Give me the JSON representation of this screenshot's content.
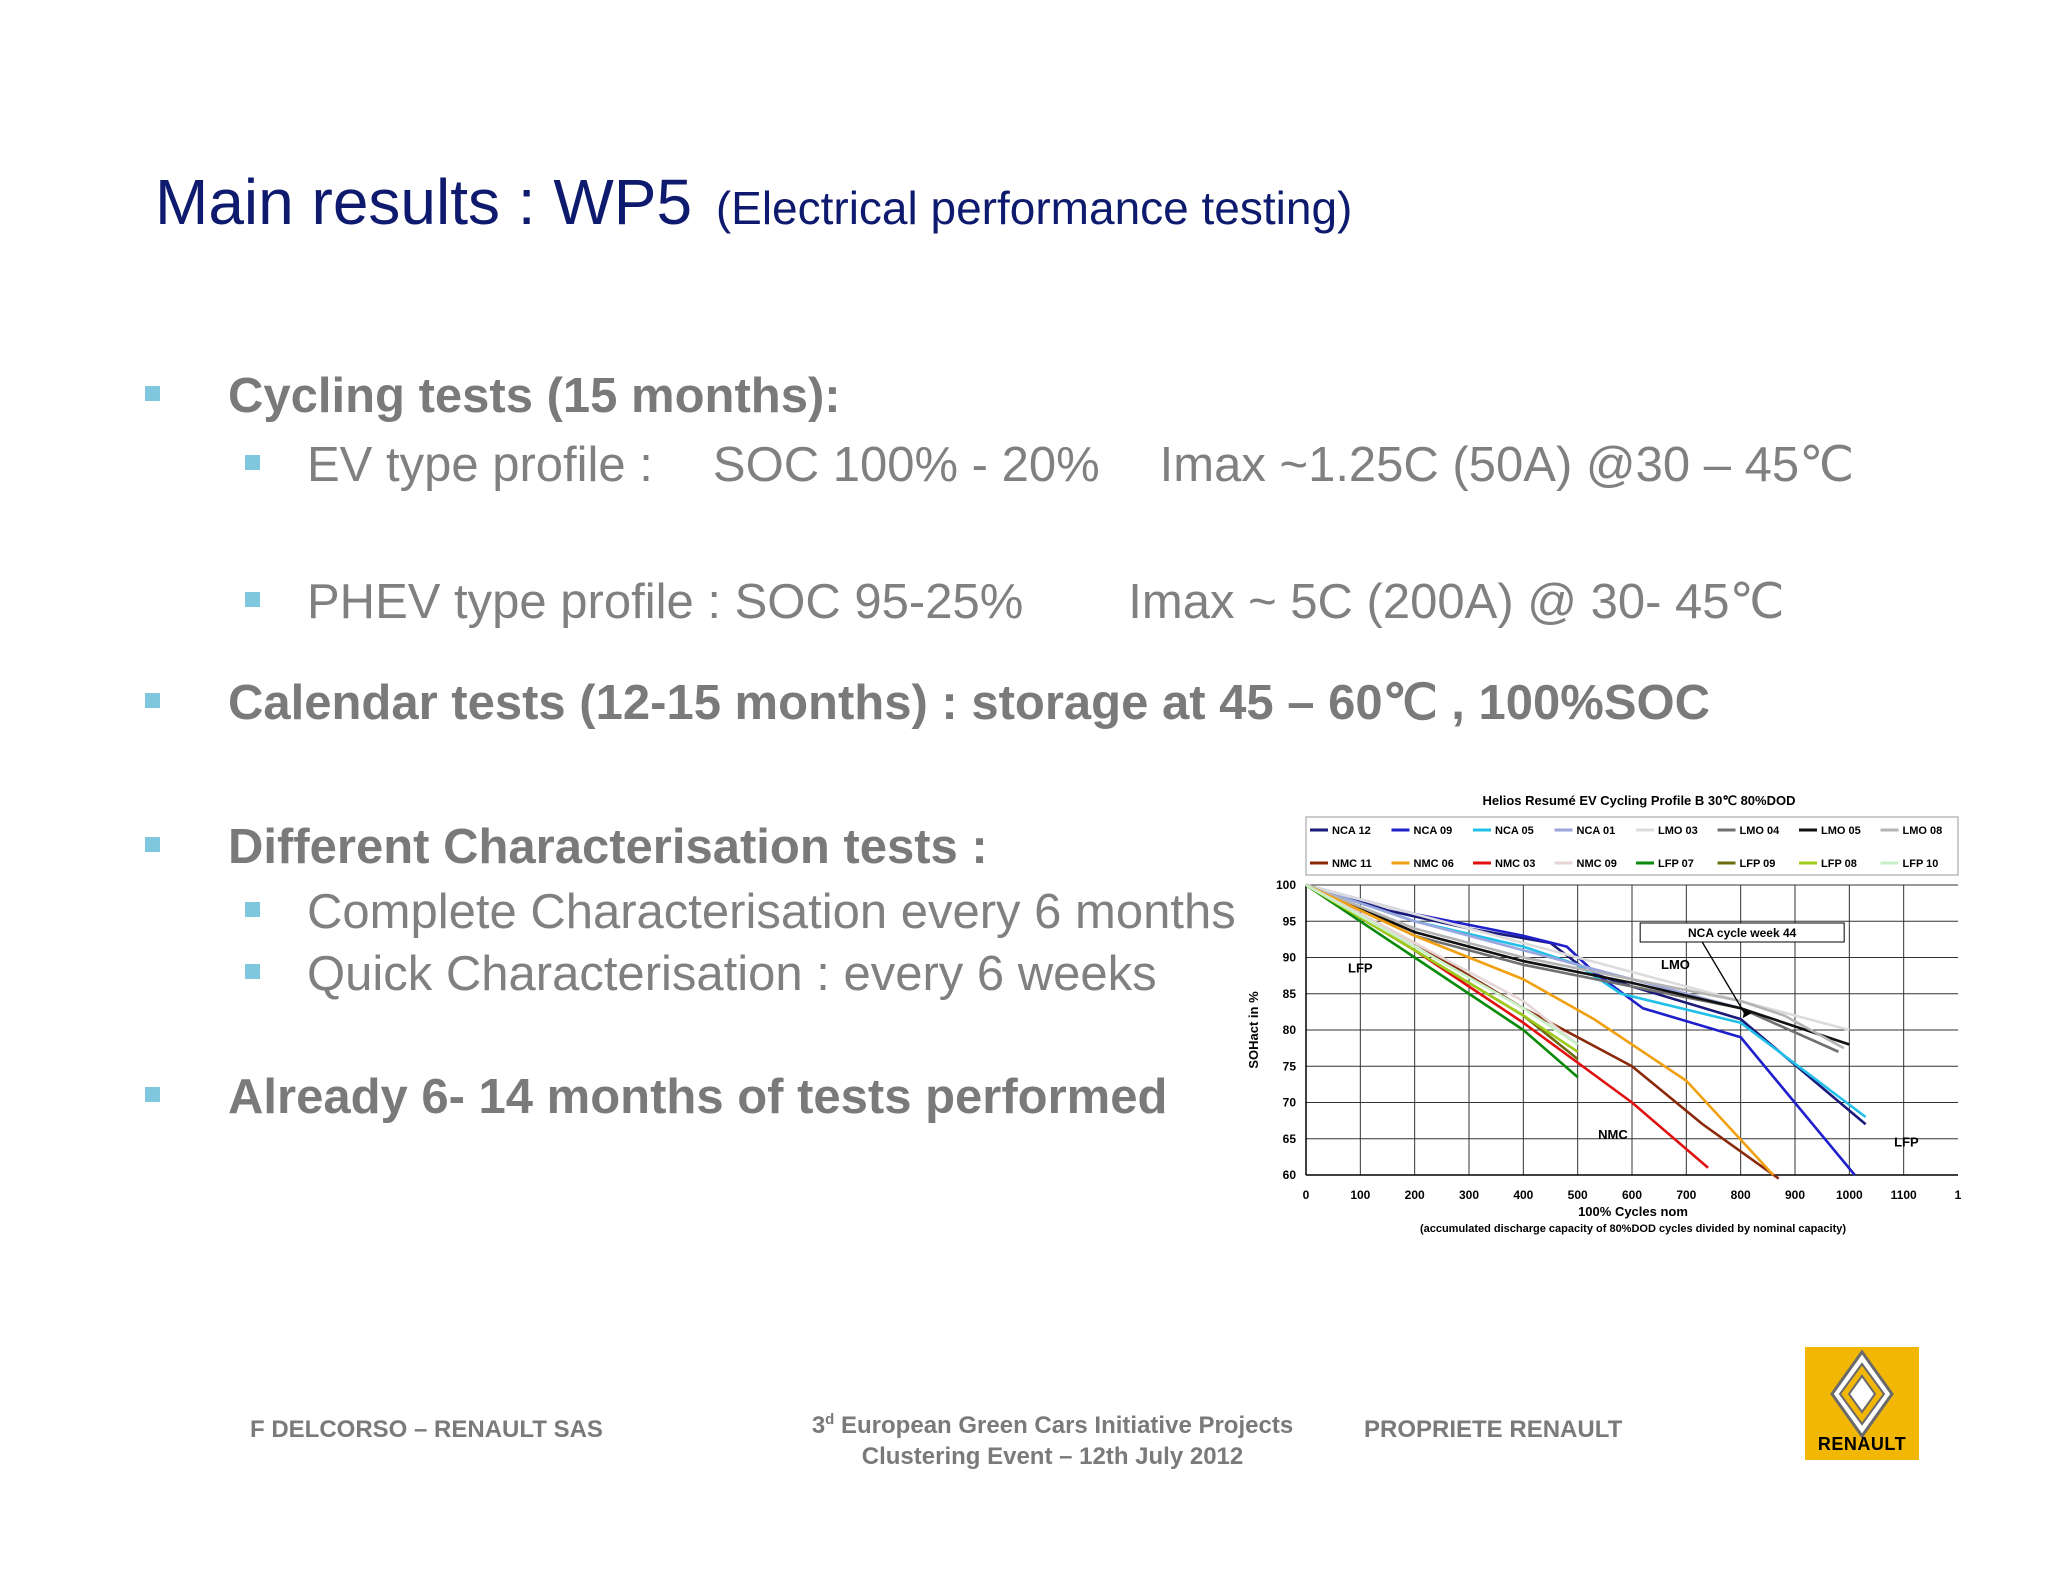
{
  "slide": {
    "title": "Main results : WP5",
    "title_sub": "(Electrical performance testing)",
    "bullets": {
      "cycling": "Cycling tests (15 months):",
      "ev_profile_label": "EV type profile :",
      "ev_soc": "SOC 100% - 20%",
      "ev_imax": "Imax ~1.25C (50A) @30 – 45℃",
      "phev_profile": "PHEV type profile : SOC 95-25%",
      "phev_imax": "Imax ~ 5C (200A) @ 30- 45℃",
      "calendar": "Calendar tests (12-15 months) : storage at 45 – 60℃ , 100%SOC",
      "characterisation": "Different Characterisation tests :",
      "complete_char": "Complete Characterisation every 6 months,",
      "quick_char": "Quick Characterisation : every 6 weeks",
      "already": "Already 6- 14 months of tests performed"
    },
    "footer": {
      "author": "F DELCORSO – RENAULT SAS",
      "event_prefix": "3",
      "event_sup": "d",
      "event_line1": " European Green Cars Initiative Projects",
      "event_line2": "Clustering Event – 12th July 2012",
      "propriete": "PROPRIETE RENAULT"
    },
    "logo": {
      "text": "RENAULT",
      "icon": "renault-diamond-icon",
      "color": "#f2b705"
    }
  },
  "chart_data": {
    "type": "line",
    "title": "Helios Resumé EV Cycling Profile B 30℃ 80%DOD",
    "xlabel": "100% Cycles nom",
    "xlabel_note": "(accumulated discharge capacity of 80%DOD cycles divided by nominal capacity)",
    "ylabel": "SOHact in %",
    "xlim": [
      0,
      1200
    ],
    "ylim": [
      60,
      100
    ],
    "xticks": [
      "0",
      "100",
      "200",
      "300",
      "400",
      "500",
      "600",
      "700",
      "800",
      "900",
      "1000",
      "1100",
      "1"
    ],
    "yticks": [
      "60",
      "65",
      "70",
      "75",
      "80",
      "85",
      "90",
      "95",
      "100"
    ],
    "grid": true,
    "legend_position": "top",
    "annotations": [
      {
        "text": "LFP",
        "x": 100,
        "y": 88.5
      },
      {
        "text": "LMO",
        "x": 680,
        "y": 89
      },
      {
        "text": "NMC",
        "x": 565,
        "y": 65.5
      },
      {
        "text": "LFP",
        "x": 1105,
        "y": 64.5
      },
      {
        "text": "NCA cycle week 44",
        "x": 950,
        "y": 92,
        "arrow_to": [
          800,
          81.5
        ]
      }
    ],
    "series": [
      {
        "name": "NCA 12",
        "color": "#1a1a7a",
        "x": [
          0,
          150,
          300,
          450,
          520,
          600,
          800,
          1030
        ],
        "y": [
          100,
          96.5,
          94,
          92,
          88,
          86,
          81.5,
          67
        ]
      },
      {
        "name": "NCA 09",
        "color": "#1f1fcc",
        "x": [
          0,
          200,
          400,
          480,
          530,
          620,
          800,
          1010
        ],
        "y": [
          100,
          96,
          93,
          91.5,
          88,
          83,
          79,
          60
        ]
      },
      {
        "name": "NCA 05",
        "color": "#22c0e8",
        "x": [
          0,
          200,
          400,
          500,
          580,
          800,
          1030
        ],
        "y": [
          100,
          95,
          91.5,
          89,
          85,
          81,
          68
        ]
      },
      {
        "name": "NCA 01",
        "color": "#9aa6dd",
        "x": [
          0,
          200,
          400,
          600,
          800
        ],
        "y": [
          100,
          95,
          91,
          87,
          83
        ]
      },
      {
        "name": "LMO 03",
        "color": "#dcdcdc",
        "x": [
          0,
          200,
          400,
          600,
          800,
          1000
        ],
        "y": [
          100,
          96,
          92,
          88,
          84,
          80
        ]
      },
      {
        "name": "LMO 04",
        "color": "#707070",
        "x": [
          0,
          200,
          400,
          600,
          800,
          980
        ],
        "y": [
          100,
          93,
          89,
          86,
          83,
          77
        ]
      },
      {
        "name": "LMO 05",
        "color": "#111111",
        "x": [
          0,
          200,
          400,
          600,
          800,
          1000
        ],
        "y": [
          100,
          93.5,
          89.5,
          86.5,
          83,
          78
        ]
      },
      {
        "name": "LMO 08",
        "color": "#b4b4b4",
        "x": [
          0,
          200,
          400,
          600,
          800,
          880,
          990
        ],
        "y": [
          100,
          94,
          90,
          87,
          84,
          82,
          77.5
        ]
      },
      {
        "name": "NMC 11",
        "color": "#8b2a0a",
        "x": [
          0,
          200,
          400,
          600,
          730,
          870
        ],
        "y": [
          100,
          92,
          83,
          75,
          67,
          59.5
        ]
      },
      {
        "name": "NMC 06",
        "color": "#f0a010",
        "x": [
          0,
          200,
          400,
          530,
          700,
          860
        ],
        "y": [
          100,
          93,
          87,
          81.5,
          73,
          60
        ]
      },
      {
        "name": "NMC 03",
        "color": "#e01010",
        "x": [
          0,
          200,
          400,
          600,
          740
        ],
        "y": [
          100,
          91,
          81,
          70,
          61
        ]
      },
      {
        "name": "NMC 09",
        "color": "#e6d6d6",
        "x": [
          0,
          200,
          400,
          500
        ],
        "y": [
          100,
          92,
          84,
          78
        ]
      },
      {
        "name": "LFP 07",
        "color": "#0a8a0a",
        "x": [
          0,
          200,
          400,
          500
        ],
        "y": [
          100,
          90,
          80,
          73.5
        ]
      },
      {
        "name": "LFP 09",
        "color": "#6b6b10",
        "x": [
          0,
          200,
          400,
          500
        ],
        "y": [
          100,
          91,
          82,
          76
        ]
      },
      {
        "name": "LFP 08",
        "color": "#9ecb1a",
        "x": [
          0,
          200,
          400,
          500
        ],
        "y": [
          100,
          91,
          82,
          77
        ]
      },
      {
        "name": "LFP 10",
        "color": "#c8f0c8",
        "x": [
          0,
          200,
          400,
          500
        ],
        "y": [
          100,
          91.5,
          83,
          78
        ]
      }
    ]
  }
}
